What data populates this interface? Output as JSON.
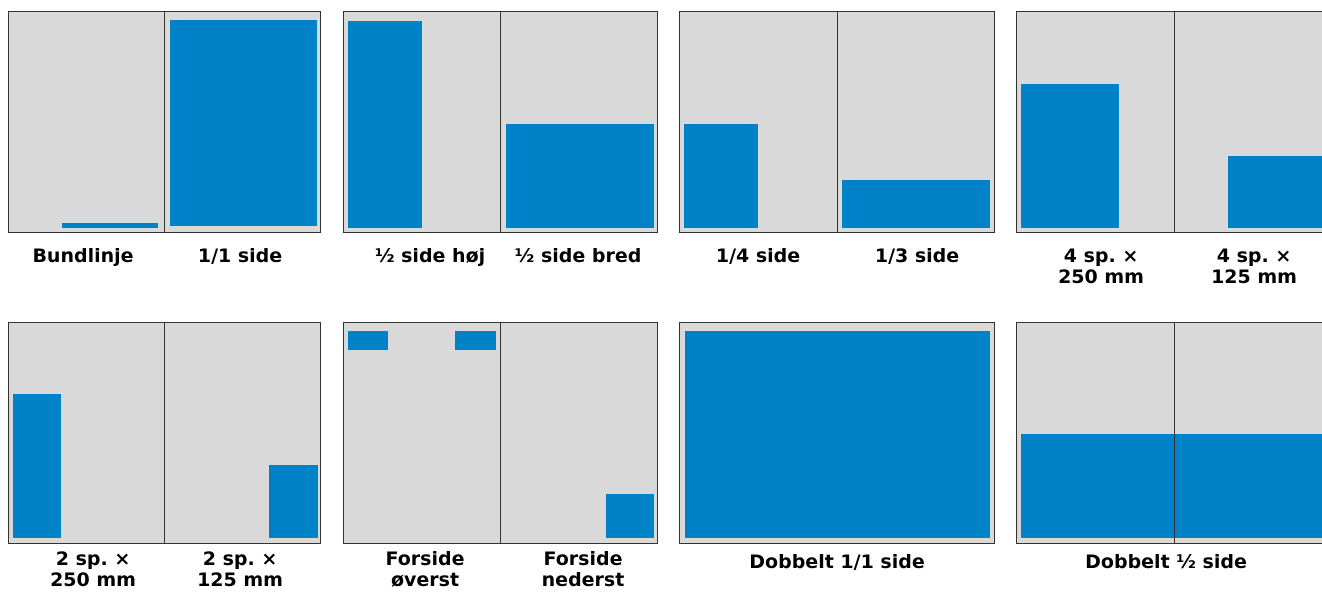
{
  "colors": {
    "page": "#d9d9d9",
    "ad": "#0082c9",
    "border": "#333333",
    "text": "#000000"
  },
  "labels": {
    "bundlinje": "Bundlinje",
    "side_1_1": "1/1 side",
    "half_hoej": "½ side høj",
    "half_bred": "½ side bred",
    "quarter": "1/4 side",
    "third": "1/3 side",
    "four_sp_250": [
      "4 sp. ×",
      "250 mm"
    ],
    "four_sp_125": [
      "4 sp. ×",
      "125 mm"
    ],
    "two_sp_250": [
      "2 sp. ×",
      "250 mm"
    ],
    "two_sp_125": [
      "2 sp. ×",
      "125 mm"
    ],
    "forside_oeverst": [
      "Forside",
      "øverst"
    ],
    "forside_nederst": [
      "Forside",
      "nederst"
    ],
    "dobbelt_1_1": "Dobbelt 1/1 side",
    "dobbelt_half": "Dobbelt ½ side"
  }
}
